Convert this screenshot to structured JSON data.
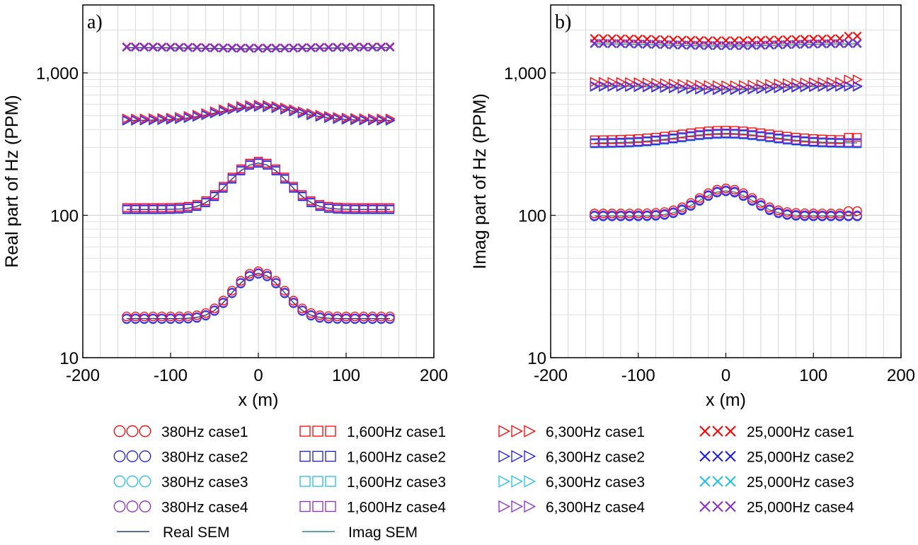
{
  "chart_data": [
    {
      "type": "scatter",
      "panel_label": "a)",
      "xlabel": "x (m)",
      "ylabel": "Real part of Hz (PPM)",
      "xlim": [
        -200,
        200
      ],
      "ylim": [
        10,
        3000
      ],
      "yscale": "log",
      "xticks": [
        -200,
        -100,
        0,
        100,
        200
      ],
      "xtick_labels": [
        "-200",
        "-100",
        "0",
        "100",
        "200"
      ],
      "yticks": [
        10,
        100,
        1000
      ],
      "ytick_labels": [
        "10",
        "100",
        "1,000"
      ],
      "grid": true,
      "x_values": "-150 to 150 step 10",
      "groups": [
        {
          "frequency": "380Hz",
          "marker": "circle",
          "peak": 39.5,
          "base": 19.0,
          "width": 35,
          "case_scales": [
            1.025,
            0.985,
            0.98,
            0.995
          ]
        },
        {
          "frequency": "1,600Hz",
          "marker": "square",
          "peak": 235,
          "base": 111,
          "width": 40,
          "case_scales": [
            1.02,
            0.99,
            0.985,
            1.0
          ]
        },
        {
          "frequency": "6,300Hz",
          "marker": "triangle",
          "peak": 585,
          "base": 468,
          "width": 60,
          "case_scales": [
            1.02,
            0.99,
            0.985,
            1.0
          ]
        },
        {
          "frequency": "25,000Hz",
          "marker": "x",
          "peak": 1490,
          "base": 1520,
          "width": 80,
          "case_scales": [
            1.005,
            0.998,
            0.995,
            1.0
          ]
        }
      ]
    },
    {
      "type": "scatter",
      "panel_label": "b)",
      "xlabel": "x (m)",
      "ylabel": "Imag part of Hz (PPM)",
      "xlim": [
        -200,
        200
      ],
      "ylim": [
        10,
        3000
      ],
      "yscale": "log",
      "xticks": [
        -200,
        -100,
        0,
        100,
        200
      ],
      "xtick_labels": [
        "-200",
        "-100",
        "0",
        "100",
        "200"
      ],
      "yticks": [
        10,
        100,
        1000
      ],
      "ytick_labels": [
        "10",
        "100",
        "1,000"
      ],
      "grid": true,
      "x_values": "-150 to 150 step 10",
      "groups": [
        {
          "frequency": "380Hz",
          "marker": "circle",
          "peak": 150,
          "base": 100,
          "width": 40,
          "case_scales": [
            1.03,
            0.985,
            0.98,
            1.0
          ]
        },
        {
          "frequency": "1,600Hz",
          "marker": "square",
          "peak": 380,
          "base": 325,
          "width": 70,
          "case_scales": [
            1.04,
            0.985,
            0.975,
            0.995
          ]
        },
        {
          "frequency": "6,300Hz",
          "marker": "triangle",
          "peak": 770,
          "base": 815,
          "width": 70,
          "case_scales": [
            1.06,
            0.985,
            0.98,
            0.995
          ]
        },
        {
          "frequency": "25,000Hz",
          "marker": "x",
          "peak": 1560,
          "base": 1620,
          "width": 90,
          "case_scales": [
            1.08,
            0.995,
            0.99,
            1.0
          ]
        }
      ]
    }
  ],
  "case_colors": {
    "case1": "#ff0000",
    "case2": "#1a1adf",
    "case3": "#22c0e6",
    "case4": "#8a2bc8",
    "real_sem": "#1f3f78",
    "imag_sem": "#2a8a8a"
  },
  "legend": {
    "columns": [
      [
        {
          "marker": "circle",
          "color": "case1",
          "label": "380Hz case1"
        },
        {
          "marker": "circle",
          "color": "case2",
          "label": "380Hz case2"
        },
        {
          "marker": "circle",
          "color": "case3",
          "label": "380Hz case3"
        },
        {
          "marker": "circle",
          "color": "case4",
          "label": "380Hz case4"
        },
        {
          "marker": "line",
          "color": "real_sem",
          "label": "Real SEM"
        }
      ],
      [
        {
          "marker": "square",
          "color": "case1",
          "label": "1,600Hz case1"
        },
        {
          "marker": "square",
          "color": "case2",
          "label": "1,600Hz case2"
        },
        {
          "marker": "square",
          "color": "case3",
          "label": "1,600Hz case3"
        },
        {
          "marker": "square",
          "color": "case4",
          "label": "1,600Hz case4"
        },
        {
          "marker": "line",
          "color": "imag_sem",
          "label": "Imag SEM"
        }
      ],
      [
        {
          "marker": "triangle",
          "color": "case1",
          "label": "6,300Hz case1"
        },
        {
          "marker": "triangle",
          "color": "case2",
          "label": "6,300Hz case2"
        },
        {
          "marker": "triangle",
          "color": "case3",
          "label": "6,300Hz case3"
        },
        {
          "marker": "triangle",
          "color": "case4",
          "label": "6,300Hz case4"
        }
      ],
      [
        {
          "marker": "x",
          "color": "case1",
          "label": "25,000Hz case1"
        },
        {
          "marker": "x",
          "color": "case2",
          "label": "25,000Hz case2"
        },
        {
          "marker": "x",
          "color": "case3",
          "label": "25,000Hz case3"
        },
        {
          "marker": "x",
          "color": "case4",
          "label": "25,000Hz case4"
        }
      ]
    ]
  }
}
